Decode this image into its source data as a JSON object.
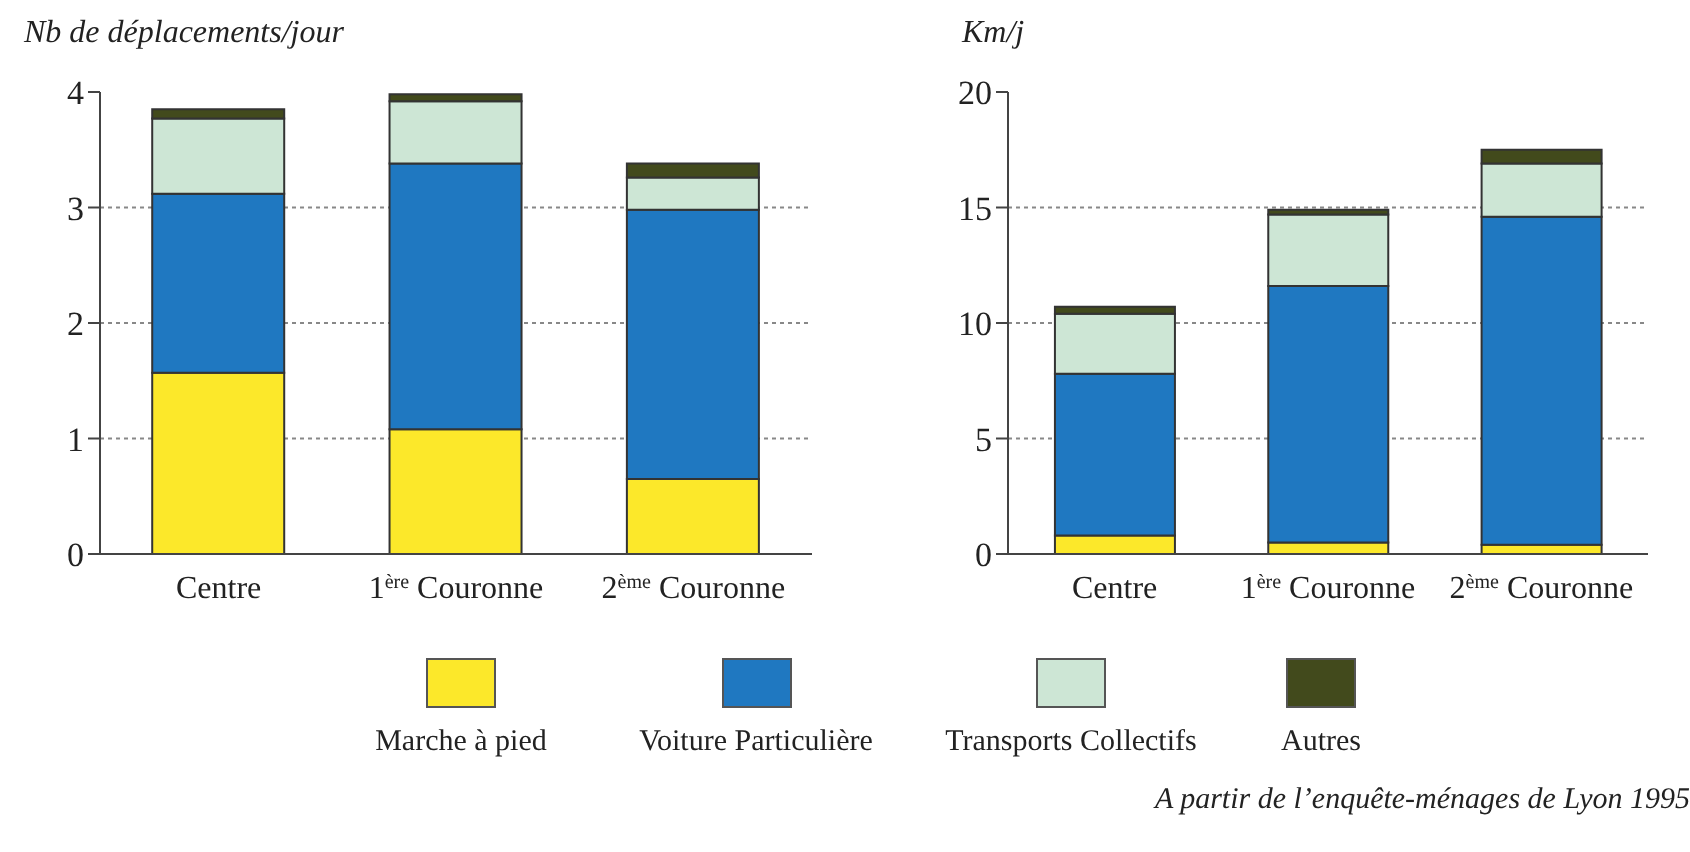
{
  "chart_data": [
    {
      "type": "bar",
      "stacked": true,
      "ylabel": "Nb de déplacements/jour",
      "categories": [
        "Centre",
        "1$^{ère}$ Couronne",
        "2$^{ème}$ Couronne"
      ],
      "ylim": [
        0,
        4
      ],
      "yticks": [
        0,
        1,
        2,
        3,
        4
      ],
      "grid": "y",
      "legend": "bottom",
      "series": [
        {
          "name": "Marche à pied",
          "color": "#fce82a",
          "values": [
            1.57,
            1.08,
            0.65
          ]
        },
        {
          "name": "Voiture Particulière",
          "color": "#1f78c1",
          "values": [
            1.55,
            2.3,
            2.33
          ]
        },
        {
          "name": "Transports Collectifs",
          "color": "#cde6d5",
          "values": [
            0.65,
            0.54,
            0.28
          ]
        },
        {
          "name": "Autres",
          "color": "#424a1c",
          "values": [
            0.08,
            0.06,
            0.12
          ]
        }
      ]
    },
    {
      "type": "bar",
      "stacked": true,
      "ylabel": "Km/j",
      "categories": [
        "Centre",
        "1$^{ère}$ Couronne",
        "2$^{ème}$ Couronne"
      ],
      "ylim": [
        0,
        20
      ],
      "yticks": [
        0,
        5,
        10,
        15,
        20
      ],
      "grid": "y",
      "annotations": [
        "A partir de l’enquête-ménages de Lyon 1995"
      ],
      "series": [
        {
          "color": "#fce82a",
          "values": [
            0.8,
            0.5,
            0.4
          ]
        },
        {
          "color": "#1f78c1",
          "values": [
            7.0,
            11.1,
            14.2
          ]
        },
        {
          "color": "#cde6d5",
          "values": [
            2.6,
            3.1,
            2.3
          ]
        },
        {
          "color": "#424a1c",
          "values": [
            0.3,
            0.2,
            0.6
          ]
        }
      ]
    }
  ]
}
